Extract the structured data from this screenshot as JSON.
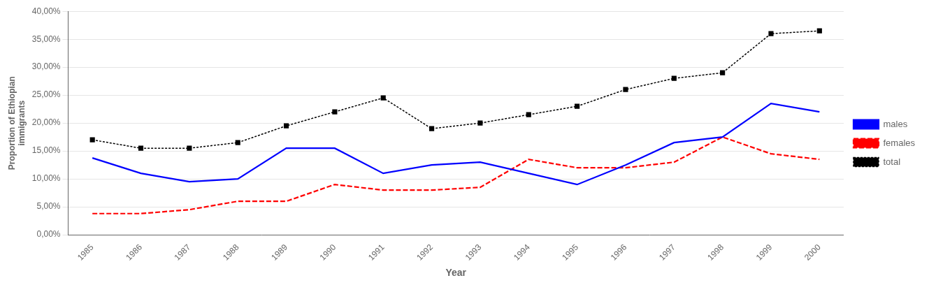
{
  "chart_data": {
    "type": "line",
    "x_label": "Year",
    "y_label": "Proportion of Ethiopian\nimmigrants",
    "x": [
      1985,
      1986,
      1987,
      1988,
      1989,
      1990,
      1991,
      1992,
      1993,
      1994,
      1995,
      1996,
      1997,
      1998,
      1999,
      2000
    ],
    "series": [
      {
        "name": "males",
        "color": "#0000FF",
        "line_style": "solid",
        "marker": "none",
        "values": [
          0.1375,
          0.11,
          0.095,
          0.1,
          0.155,
          0.155,
          0.11,
          0.125,
          0.13,
          0.11,
          0.09,
          0.125,
          0.165,
          0.175,
          0.235,
          0.22
        ]
      },
      {
        "name": "females",
        "color": "#FF0000",
        "line_style": "dashed",
        "marker": "none",
        "values": [
          0.038,
          0.038,
          0.045,
          0.06,
          0.06,
          0.09,
          0.08,
          0.08,
          0.085,
          0.135,
          0.12,
          0.12,
          0.13,
          0.175,
          0.145,
          0.135
        ]
      },
      {
        "name": "total",
        "color": "#000000",
        "line_style": "dotted",
        "marker": "square",
        "values": [
          0.17,
          0.155,
          0.155,
          0.165,
          0.195,
          0.22,
          0.245,
          0.19,
          0.2,
          0.215,
          0.23,
          0.26,
          0.28,
          0.29,
          0.36,
          0.365
        ]
      }
    ],
    "xlim": [
      1984.5,
      2000.5
    ],
    "xticks": [
      1985,
      1986,
      1987,
      1988,
      1989,
      1990,
      1991,
      1992,
      1993,
      1994,
      1995,
      1996,
      1997,
      1998,
      1999,
      2000
    ],
    "ylim": [
      0.0,
      0.4
    ],
    "yticks": [
      {
        "value": 0.0,
        "label": "0,00%"
      },
      {
        "value": 0.05,
        "label": "5,00%"
      },
      {
        "value": 0.1,
        "label": "10,00%"
      },
      {
        "value": 0.15,
        "label": "15,00%"
      },
      {
        "value": 0.2,
        "label": "20,00%"
      },
      {
        "value": 0.25,
        "label": "25,00%"
      },
      {
        "value": 0.3,
        "label": "30,00%"
      },
      {
        "value": 0.35,
        "label": "35,00%"
      },
      {
        "value": 0.4,
        "label": "40,00%"
      }
    ],
    "grid": "y",
    "legend": "right"
  }
}
